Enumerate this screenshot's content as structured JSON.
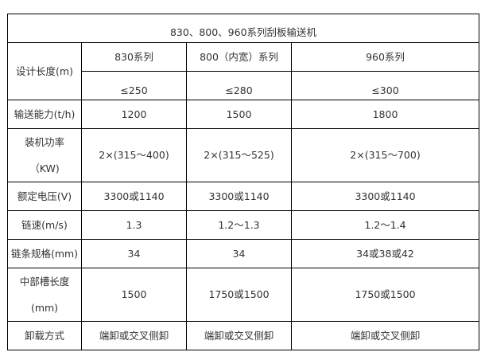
{
  "title": "830、800、960系列刮板输送机",
  "columns": [
    "830系列",
    "800（内宽）系列",
    "960系列"
  ],
  "rows": [
    {
      "label": "设计长度(m)",
      "values": [
        "≤250",
        "≤280",
        "≤300"
      ]
    },
    {
      "label": "输送能力(t/h)",
      "values": [
        "1200",
        "1500",
        "1800"
      ]
    },
    {
      "label_lines": [
        "装机功率",
        "（KW)"
      ],
      "values": [
        "2×(315～400)",
        "2×(315～525)",
        "2×(315～700)"
      ]
    },
    {
      "label": "额定电压(V)",
      "values": [
        "3300或1140",
        "3300或1140",
        "3300或1140"
      ]
    },
    {
      "label": "链速(m/s)",
      "values": [
        "1.3",
        "1.2～1.3",
        "1.2～1.4"
      ]
    },
    {
      "label": "链条规格(mm)",
      "values": [
        "34",
        "34",
        "34或38或42"
      ]
    },
    {
      "label_lines": [
        "中部槽长度",
        "(mm)"
      ],
      "values": [
        "1500",
        "1750或1500",
        "1750或1500"
      ]
    },
    {
      "label": "卸载方式",
      "values": [
        "端卸或交叉侧卸",
        "端卸或交叉侧卸",
        "端卸或交叉侧卸"
      ]
    }
  ]
}
